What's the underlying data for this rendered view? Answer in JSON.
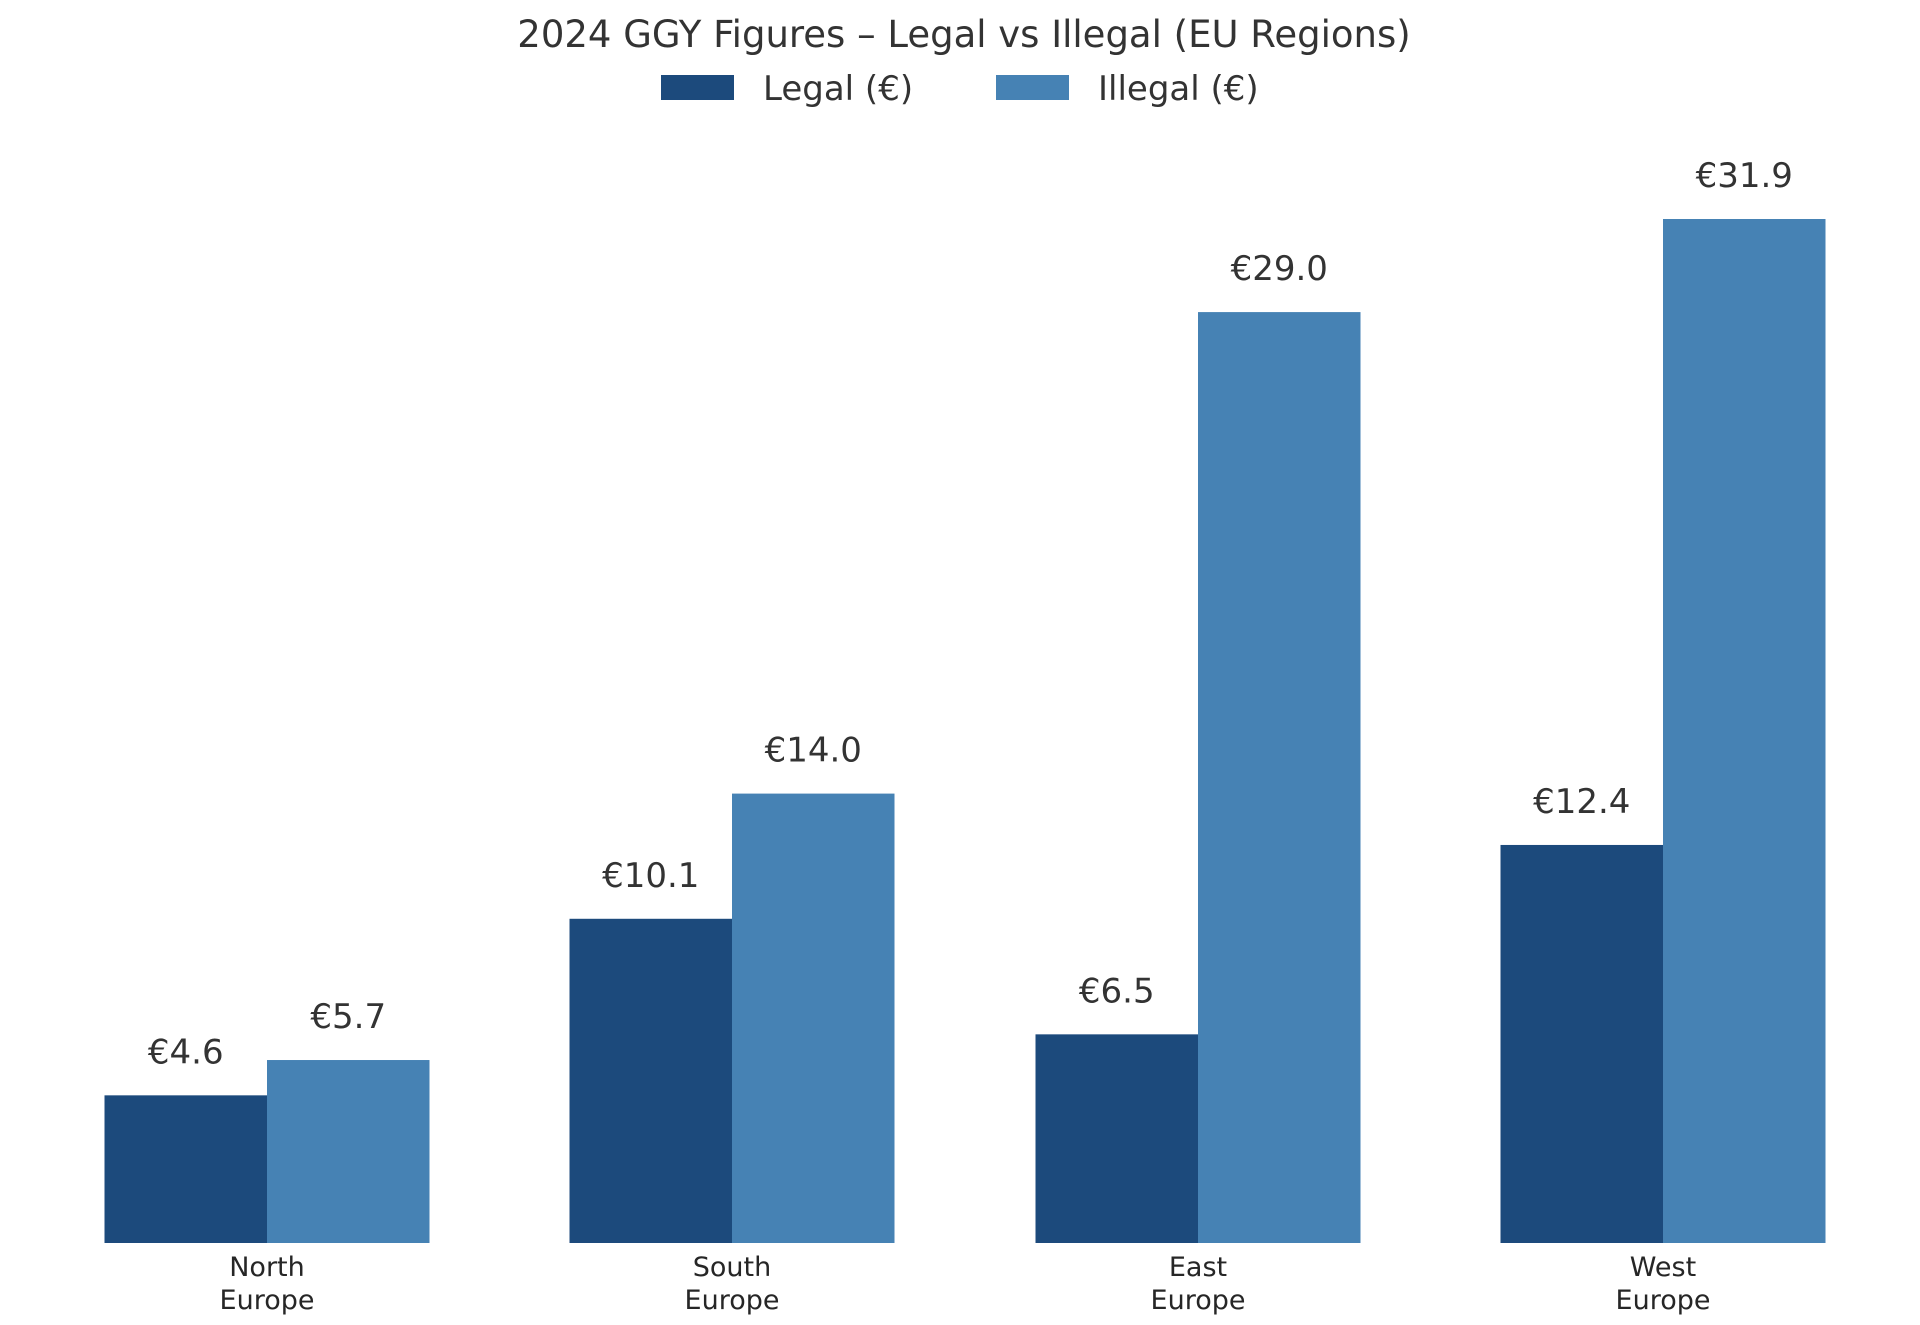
{
  "chart_data": {
    "type": "bar",
    "title": "2024 GGY Figures – Legal vs Illegal (EU Regions)",
    "xlabel": "",
    "ylabel": "",
    "categories": [
      [
        "North",
        "Europe"
      ],
      [
        "South",
        "Europe"
      ],
      [
        "East",
        "Europe"
      ],
      [
        "West",
        "Europe"
      ]
    ],
    "series": [
      {
        "name": "Legal (€)",
        "color": "#1c4a7c",
        "values": [
          4.6,
          10.1,
          6.5,
          12.4
        ],
        "labels": [
          "€4.6",
          "€10.1",
          "€6.5",
          "€12.4"
        ]
      },
      {
        "name": "Illegal (€)",
        "color": "#4682b4",
        "values": [
          5.7,
          14.0,
          29.0,
          31.9
        ],
        "labels": [
          "€5.7",
          "€14.0",
          "€29.0",
          "€31.9"
        ]
      }
    ],
    "ylim": [
      0,
      31.9
    ],
    "grid": false,
    "legend_position": "top-center"
  }
}
